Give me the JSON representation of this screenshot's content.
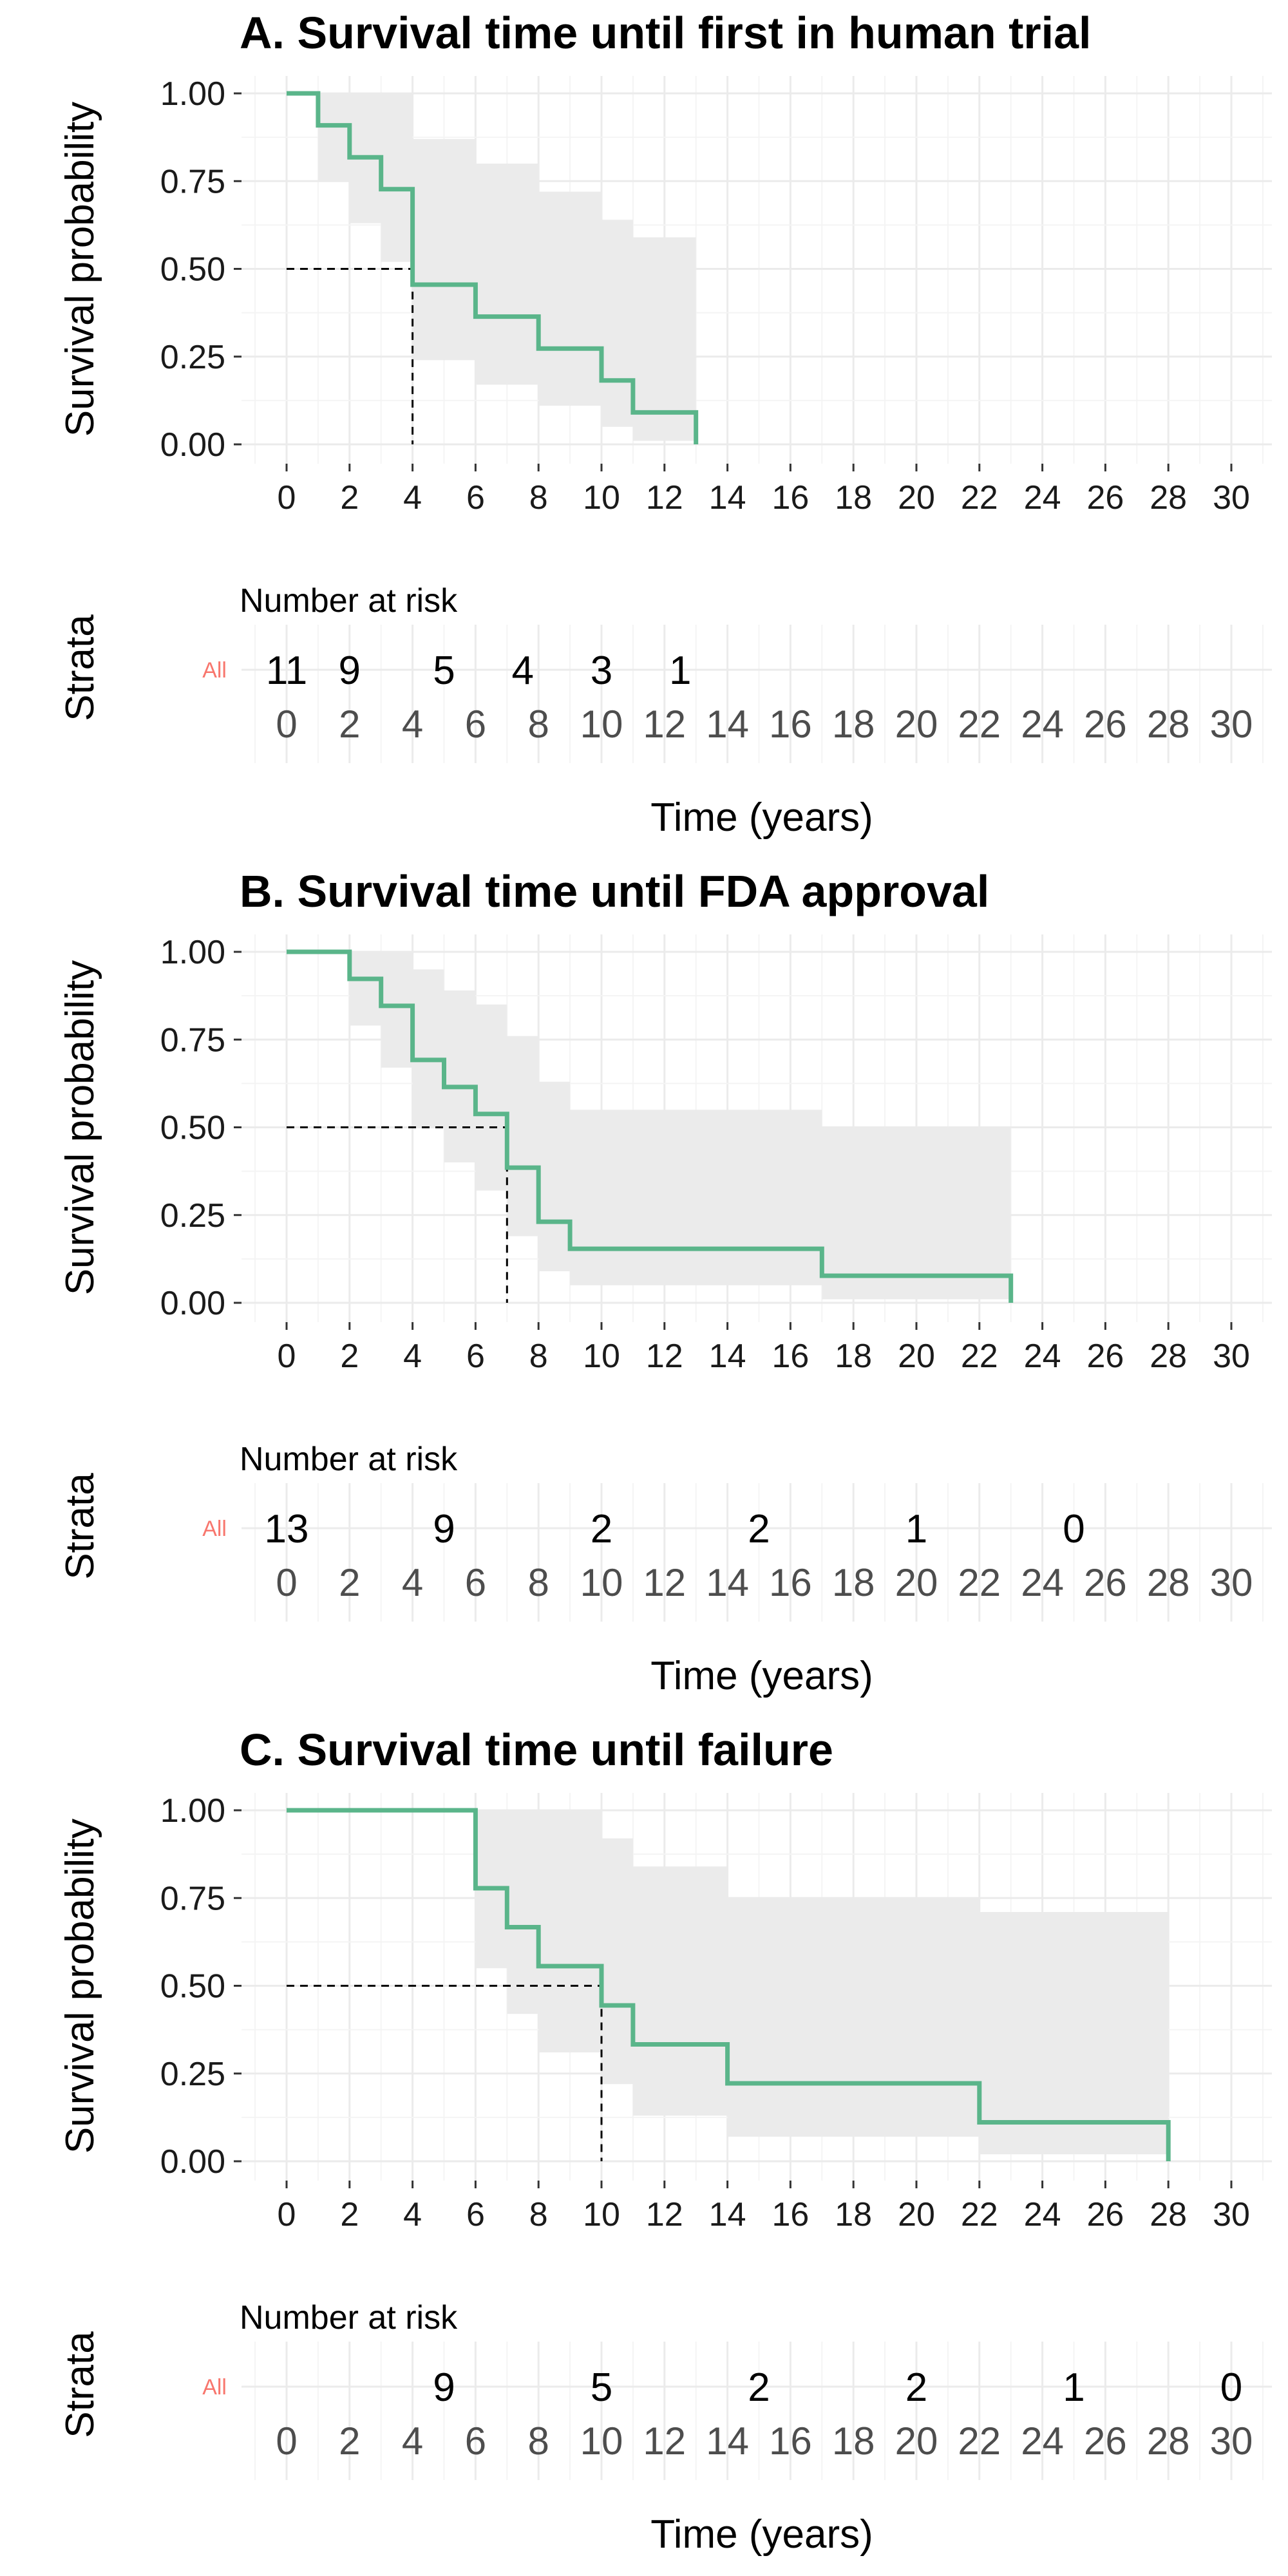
{
  "colors": {
    "curve": "#5AB58A",
    "ci_band": "#EBEBEB",
    "grid_major": "#EBEBEB",
    "grid_minor": "#F4F4F4",
    "strata": "#F8766D",
    "median_line": "#000000"
  },
  "common": {
    "survival_axis_label": "Survival probability",
    "strata_axis_label": "Strata",
    "time_axis_label": "Time (years)",
    "risk_table_title": "Number at risk",
    "strata_name": "All",
    "y_tick_labels": [
      "0.00",
      "0.25",
      "0.50",
      "0.75",
      "1.00"
    ]
  },
  "chart_data": [
    {
      "type": "line",
      "title": "A. Survival time until first in human trial",
      "xlabel": "Time (years)",
      "ylabel": "Survival probability",
      "xlim": [
        0,
        31
      ],
      "ylim": [
        0,
        1
      ],
      "x_ticks": [
        0,
        2,
        4,
        6,
        8,
        10,
        12,
        14,
        16,
        18,
        20,
        22,
        24,
        26,
        28,
        30
      ],
      "y_ticks": [
        0,
        0.25,
        0.5,
        0.75,
        1
      ],
      "grid": true,
      "series": [
        {
          "step": true,
          "x": [
            0,
            1,
            2,
            3,
            4,
            6,
            8,
            10,
            11,
            13
          ],
          "y": [
            1.0,
            0.909,
            0.818,
            0.727,
            0.455,
            0.364,
            0.273,
            0.182,
            0.091,
            0.0
          ],
          "ci_lower": [
            1.0,
            0.75,
            0.63,
            0.52,
            0.24,
            0.17,
            0.11,
            0.05,
            0.01,
            0.0
          ],
          "ci_upper": [
            1.0,
            1.0,
            1.0,
            1.0,
            0.87,
            0.8,
            0.72,
            0.64,
            0.59,
            0.0
          ]
        }
      ],
      "median": 4,
      "risk_table": {
        "times": [
          0,
          2,
          4,
          6,
          8,
          10,
          12,
          14,
          16,
          18,
          20,
          22,
          24,
          26,
          28,
          30
        ],
        "at_risk_times": [
          0,
          2,
          4,
          6,
          8,
          10,
          12
        ],
        "at_risk_labels": [
          "11",
          "9",
          "5",
          "4",
          "3",
          "1"
        ],
        "at_risk_label_times": [
          0,
          2,
          5,
          7.5,
          10,
          12.5
        ]
      }
    },
    {
      "type": "line",
      "title": "B. Survival time until FDA approval",
      "xlabel": "Time (years)",
      "ylabel": "Survival probability",
      "xlim": [
        0,
        31
      ],
      "ylim": [
        0,
        1
      ],
      "x_ticks": [
        0,
        2,
        4,
        6,
        8,
        10,
        12,
        14,
        16,
        18,
        20,
        22,
        24,
        26,
        28,
        30
      ],
      "y_ticks": [
        0,
        0.25,
        0.5,
        0.75,
        1
      ],
      "grid": true,
      "series": [
        {
          "step": true,
          "x": [
            0,
            2,
            3,
            4,
            5,
            6,
            7,
            8,
            9,
            17,
            23
          ],
          "y": [
            1.0,
            0.923,
            0.846,
            0.692,
            0.615,
            0.538,
            0.385,
            0.231,
            0.154,
            0.077,
            0.0
          ],
          "ci_lower": [
            1.0,
            0.79,
            0.67,
            0.5,
            0.4,
            0.32,
            0.19,
            0.09,
            0.05,
            0.01,
            0.0
          ],
          "ci_upper": [
            1.0,
            1.0,
            1.0,
            0.95,
            0.89,
            0.85,
            0.76,
            0.63,
            0.55,
            0.5,
            0.0
          ]
        }
      ],
      "median": 7,
      "risk_table": {
        "times": [
          0,
          2,
          4,
          6,
          8,
          10,
          12,
          14,
          16,
          18,
          20,
          22,
          24,
          26,
          28,
          30
        ],
        "at_risk_labels": [
          "13",
          "9",
          "2",
          "2",
          "1",
          "0"
        ],
        "at_risk_label_times": [
          0,
          5,
          10,
          15,
          20,
          25
        ]
      }
    },
    {
      "type": "line",
      "title": "C. Survival time until failure",
      "xlabel": "Time (years)",
      "ylabel": "Survival probability",
      "xlim": [
        0,
        31
      ],
      "ylim": [
        0,
        1
      ],
      "x_ticks": [
        0,
        2,
        4,
        6,
        8,
        10,
        12,
        14,
        16,
        18,
        20,
        22,
        24,
        26,
        28,
        30
      ],
      "y_ticks": [
        0,
        0.25,
        0.5,
        0.75,
        1
      ],
      "grid": true,
      "series": [
        {
          "step": true,
          "x": [
            0,
            6,
            7,
            8,
            10,
            11,
            14,
            22,
            28
          ],
          "y": [
            1.0,
            0.778,
            0.667,
            0.556,
            0.444,
            0.333,
            0.222,
            0.111,
            0.0
          ],
          "ci_lower": [
            1.0,
            0.55,
            0.42,
            0.31,
            0.22,
            0.13,
            0.07,
            0.02,
            0.0
          ],
          "ci_upper": [
            1.0,
            1.0,
            1.0,
            1.0,
            0.92,
            0.84,
            0.75,
            0.71,
            0.0
          ]
        }
      ],
      "median": 10,
      "risk_table": {
        "times": [
          0,
          2,
          4,
          6,
          8,
          10,
          12,
          14,
          16,
          18,
          20,
          22,
          24,
          26,
          28,
          30
        ],
        "at_risk_labels": [
          "9",
          "5",
          "2",
          "2",
          "1",
          "0"
        ],
        "at_risk_label_times": [
          5,
          10,
          15,
          20,
          25,
          30
        ]
      }
    }
  ]
}
